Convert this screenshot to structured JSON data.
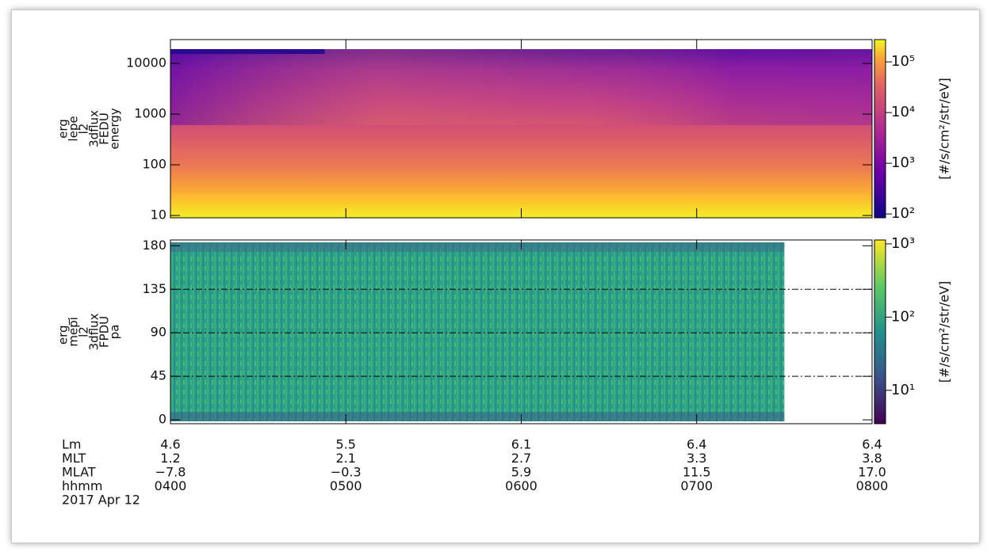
{
  "chart_data": [
    {
      "type": "spectrogram",
      "ylabel": [
        "erg",
        "lepe",
        "l2",
        "3dflux",
        "FEDU",
        "energy"
      ],
      "log_y": true,
      "ylim": [
        9,
        29500
      ],
      "yticks": [
        10,
        100,
        1000,
        10000
      ],
      "xlim": [
        4,
        8
      ],
      "xticks": [
        4,
        5,
        6,
        7,
        8
      ],
      "x_data_range": [
        4,
        8
      ],
      "colormap": "plasma",
      "colorbar": {
        "label": "[#/s/cm²/str/eV]",
        "log": true,
        "clim": [
          84,
          275000
        ],
        "ticks": [
          {
            "value": 100,
            "label": "10²"
          },
          {
            "value": 1000,
            "label": "10³"
          },
          {
            "value": 10000,
            "label": "10⁴"
          },
          {
            "value": 100000,
            "label": "10⁵"
          }
        ]
      }
    },
    {
      "type": "spectrogram",
      "ylabel": [
        "erg_",
        "mepi",
        "l2",
        "3dflux",
        "FPDU",
        "pa"
      ],
      "log_y": false,
      "ylim": [
        -4,
        186
      ],
      "yticks": [
        0,
        45,
        90,
        135,
        180
      ],
      "xlim": [
        4,
        8
      ],
      "xticks": [
        4,
        5,
        6,
        7,
        8
      ],
      "x_data_range": [
        4,
        7.5
      ],
      "hlines": [
        45,
        90,
        135
      ],
      "colormap": "viridis",
      "colorbar": {
        "label": "[#/s/cm²/str/eV]",
        "log": true,
        "clim": [
          3.5,
          1130
        ],
        "ticks": [
          {
            "value": 10,
            "label": "10¹"
          },
          {
            "value": 100,
            "label": "10²"
          },
          {
            "value": 1000,
            "label": "10³"
          }
        ]
      }
    }
  ],
  "ephemeris": {
    "rows": [
      {
        "label": "Lm",
        "values": [
          "4.6",
          "5.5",
          "6.1",
          "6.4",
          "6.4"
        ]
      },
      {
        "label": "MLT",
        "values": [
          "1.2",
          "2.1",
          "2.7",
          "3.3",
          "3.8"
        ]
      },
      {
        "label": "MLAT",
        "values": [
          "−7.8",
          "−0.3",
          "5.9",
          "11.5",
          "17.0"
        ]
      },
      {
        "label": "hhmm",
        "values": [
          "0400",
          "0500",
          "0600",
          "0700",
          "0800"
        ]
      }
    ],
    "date": "2017 Apr 12"
  }
}
